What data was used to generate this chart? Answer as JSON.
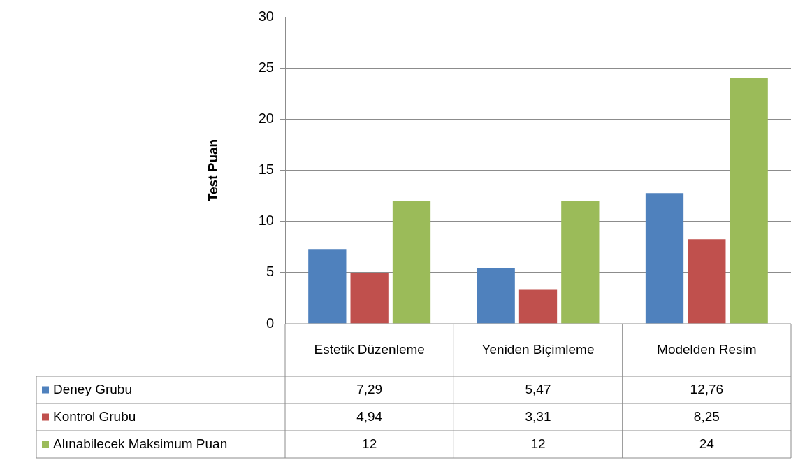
{
  "chart_data": {
    "type": "bar",
    "ylabel": "Test Puan",
    "categories": [
      "Estetik Düzenleme",
      "Yeniden Biçimleme",
      "Modelden Resim"
    ],
    "series": [
      {
        "name": "Deney Grubu",
        "color": "#4f81bd",
        "values": [
          7.29,
          5.47,
          12.76
        ],
        "value_labels": [
          "7,29",
          "5,47",
          "12,76"
        ]
      },
      {
        "name": "Kontrol Grubu",
        "color": "#c0504d",
        "values": [
          4.94,
          3.31,
          8.25
        ],
        "value_labels": [
          "4,94",
          "3,31",
          "8,25"
        ]
      },
      {
        "name": "Alınabilecek Maksimum Puan",
        "color": "#9bbb59",
        "values": [
          12,
          12,
          24
        ],
        "value_labels": [
          "12",
          "12",
          "24"
        ]
      }
    ],
    "ylim": [
      0,
      30
    ],
    "yticks": [
      0,
      5,
      10,
      15,
      20,
      25,
      30
    ],
    "grid": "y",
    "legend": "bottom left"
  }
}
